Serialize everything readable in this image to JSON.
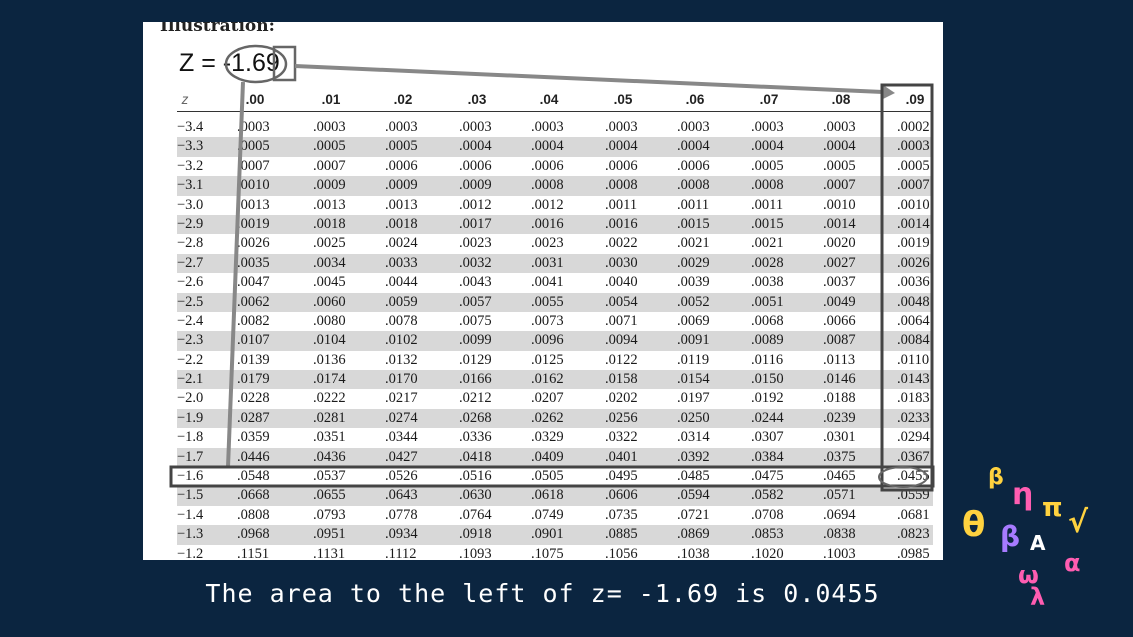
{
  "illustration_label": "Illustration:",
  "z_prefix": "Z = ",
  "z_value": "-1.69",
  "headers": [
    "z",
    ".00",
    ".01",
    ".02",
    ".03",
    ".04",
    ".05",
    ".06",
    ".07",
    ".08",
    ".09"
  ],
  "rows": [
    {
      "z": "-3.4",
      "v": [
        ".0003",
        ".0003",
        ".0003",
        ".0003",
        ".0003",
        ".0003",
        ".0003",
        ".0003",
        ".0003",
        ".0002"
      ]
    },
    {
      "z": "-3.3",
      "v": [
        ".0005",
        ".0005",
        ".0005",
        ".0004",
        ".0004",
        ".0004",
        ".0004",
        ".0004",
        ".0004",
        ".0003"
      ]
    },
    {
      "z": "-3.2",
      "v": [
        ".0007",
        ".0007",
        ".0006",
        ".0006",
        ".0006",
        ".0006",
        ".0006",
        ".0005",
        ".0005",
        ".0005"
      ]
    },
    {
      "z": "-3.1",
      "v": [
        ".0010",
        ".0009",
        ".0009",
        ".0009",
        ".0008",
        ".0008",
        ".0008",
        ".0008",
        ".0007",
        ".0007"
      ]
    },
    {
      "z": "-3.0",
      "v": [
        ".0013",
        ".0013",
        ".0013",
        ".0012",
        ".0012",
        ".0011",
        ".0011",
        ".0011",
        ".0010",
        ".0010"
      ]
    },
    {
      "z": "-2.9",
      "v": [
        ".0019",
        ".0018",
        ".0018",
        ".0017",
        ".0016",
        ".0016",
        ".0015",
        ".0015",
        ".0014",
        ".0014"
      ]
    },
    {
      "z": "-2.8",
      "v": [
        ".0026",
        ".0025",
        ".0024",
        ".0023",
        ".0023",
        ".0022",
        ".0021",
        ".0021",
        ".0020",
        ".0019"
      ]
    },
    {
      "z": "-2.7",
      "v": [
        ".0035",
        ".0034",
        ".0033",
        ".0032",
        ".0031",
        ".0030",
        ".0029",
        ".0028",
        ".0027",
        ".0026"
      ]
    },
    {
      "z": "-2.6",
      "v": [
        ".0047",
        ".0045",
        ".0044",
        ".0043",
        ".0041",
        ".0040",
        ".0039",
        ".0038",
        ".0037",
        ".0036"
      ]
    },
    {
      "z": "-2.5",
      "v": [
        ".0062",
        ".0060",
        ".0059",
        ".0057",
        ".0055",
        ".0054",
        ".0052",
        ".0051",
        ".0049",
        ".0048"
      ]
    },
    {
      "z": "-2.4",
      "v": [
        ".0082",
        ".0080",
        ".0078",
        ".0075",
        ".0073",
        ".0071",
        ".0069",
        ".0068",
        ".0066",
        ".0064"
      ]
    },
    {
      "z": "-2.3",
      "v": [
        ".0107",
        ".0104",
        ".0102",
        ".0099",
        ".0096",
        ".0094",
        ".0091",
        ".0089",
        ".0087",
        ".0084"
      ]
    },
    {
      "z": "-2.2",
      "v": [
        ".0139",
        ".0136",
        ".0132",
        ".0129",
        ".0125",
        ".0122",
        ".0119",
        ".0116",
        ".0113",
        ".0110"
      ]
    },
    {
      "z": "-2.1",
      "v": [
        ".0179",
        ".0174",
        ".0170",
        ".0166",
        ".0162",
        ".0158",
        ".0154",
        ".0150",
        ".0146",
        ".0143"
      ]
    },
    {
      "z": "-2.0",
      "v": [
        ".0228",
        ".0222",
        ".0217",
        ".0212",
        ".0207",
        ".0202",
        ".0197",
        ".0192",
        ".0188",
        ".0183"
      ]
    },
    {
      "z": "-1.9",
      "v": [
        ".0287",
        ".0281",
        ".0274",
        ".0268",
        ".0262",
        ".0256",
        ".0250",
        ".0244",
        ".0239",
        ".0233"
      ]
    },
    {
      "z": "-1.8",
      "v": [
        ".0359",
        ".0351",
        ".0344",
        ".0336",
        ".0329",
        ".0322",
        ".0314",
        ".0307",
        ".0301",
        ".0294"
      ]
    },
    {
      "z": "-1.7",
      "v": [
        ".0446",
        ".0436",
        ".0427",
        ".0418",
        ".0409",
        ".0401",
        ".0392",
        ".0384",
        ".0375",
        ".0367"
      ]
    },
    {
      "z": "-1.6",
      "v": [
        ".0548",
        ".0537",
        ".0526",
        ".0516",
        ".0505",
        ".0495",
        ".0485",
        ".0475",
        ".0465",
        ".0455"
      ]
    },
    {
      "z": "-1.5",
      "v": [
        ".0668",
        ".0655",
        ".0643",
        ".0630",
        ".0618",
        ".0606",
        ".0594",
        ".0582",
        ".0571",
        ".0559"
      ]
    },
    {
      "z": "-1.4",
      "v": [
        ".0808",
        ".0793",
        ".0778",
        ".0764",
        ".0749",
        ".0735",
        ".0721",
        ".0708",
        ".0694",
        ".0681"
      ]
    },
    {
      "z": "-1.3",
      "v": [
        ".0968",
        ".0951",
        ".0934",
        ".0918",
        ".0901",
        ".0885",
        ".0869",
        ".0853",
        ".0838",
        ".0823"
      ]
    },
    {
      "z": "-1.2",
      "v": [
        ".1151",
        ".1131",
        ".1112",
        ".1093",
        ".1075",
        ".1056",
        ".1038",
        ".1020",
        ".1003",
        ".0985"
      ]
    }
  ],
  "caption": "The area to the left of z= -1.69 is 0.0455",
  "deco_symbols": [
    "β",
    "η",
    "π",
    "√",
    "θ",
    "β",
    "A",
    "α",
    "ω",
    "λ"
  ],
  "colors": {
    "background": "#0b2540",
    "panel": "#ffffff",
    "shade": "#d8d8d8",
    "highlight": "#444444"
  }
}
